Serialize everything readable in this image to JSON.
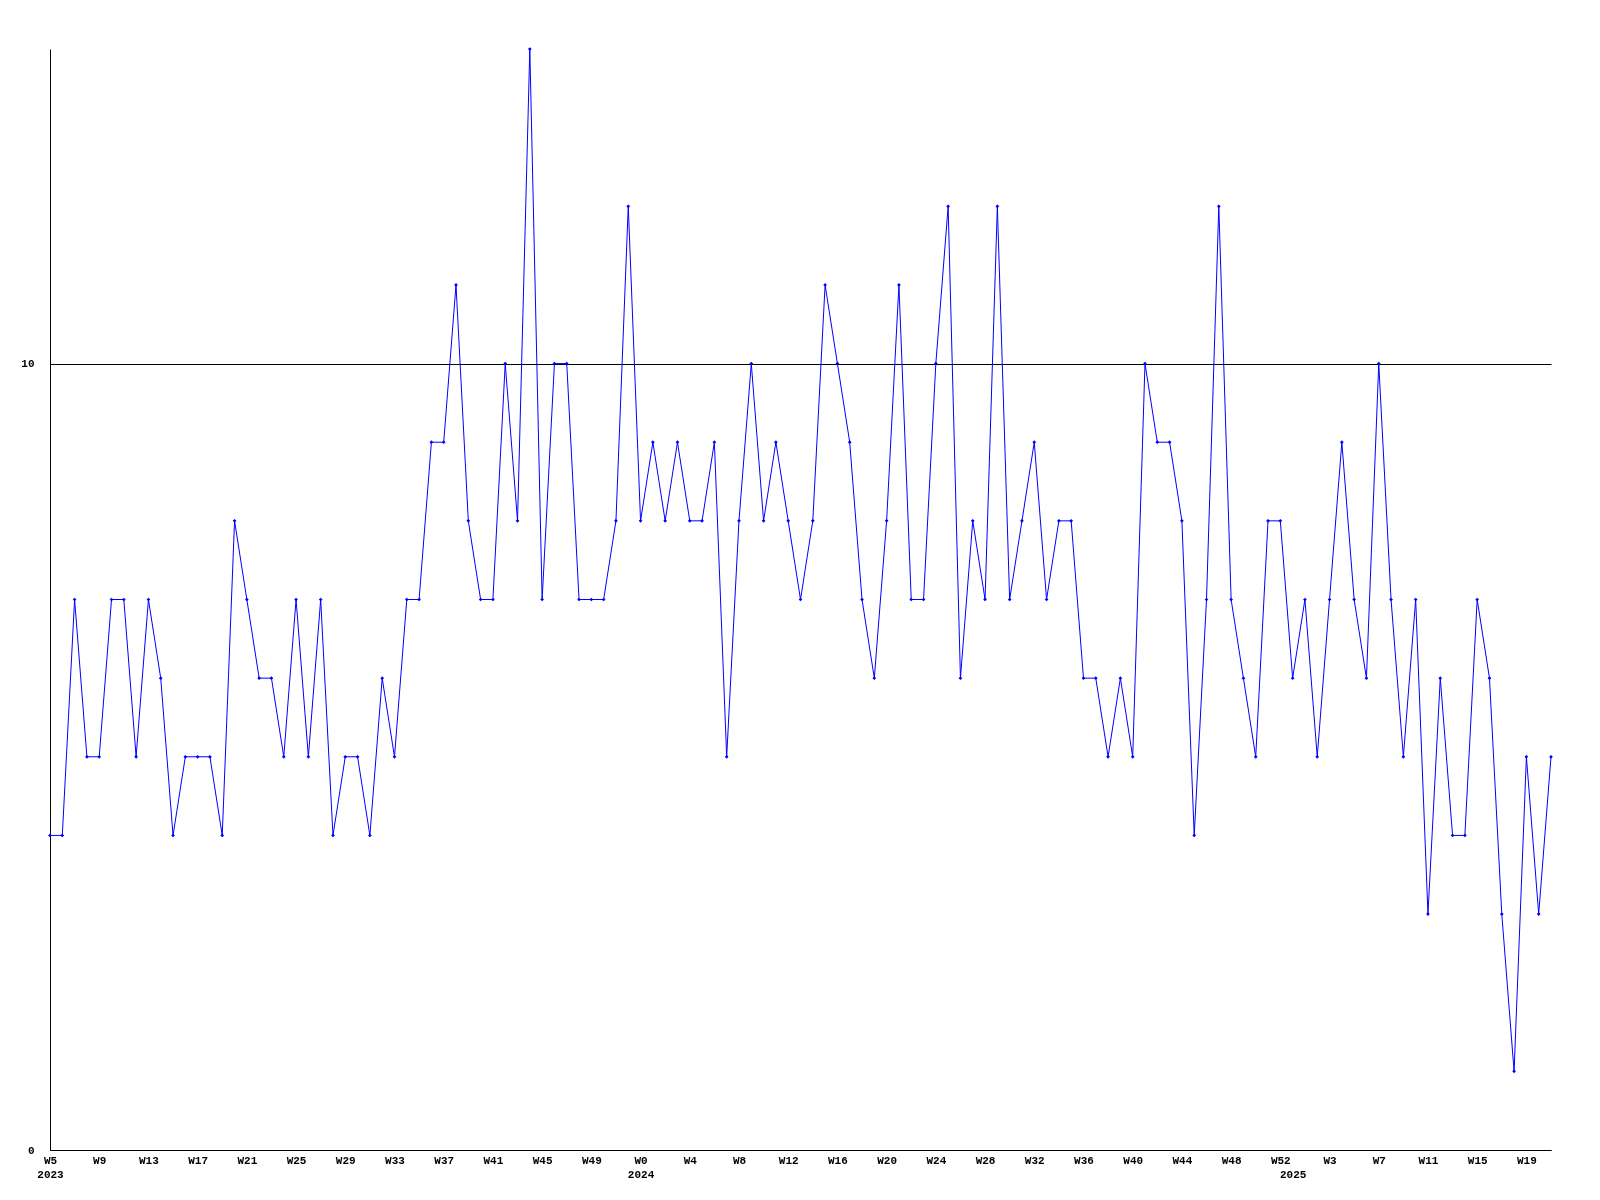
{
  "chart_data": {
    "type": "line",
    "categories": [
      "W5\n2023",
      null,
      null,
      null,
      "W9",
      null,
      null,
      null,
      "W13",
      null,
      null,
      null,
      "W17",
      null,
      null,
      null,
      "W21",
      null,
      null,
      null,
      "W25",
      null,
      null,
      null,
      "W29",
      null,
      null,
      null,
      "W33",
      null,
      null,
      null,
      "W37",
      null,
      null,
      null,
      "W41",
      null,
      null,
      null,
      "W45",
      null,
      null,
      null,
      "W49",
      null,
      null,
      null,
      "W0\n2024",
      null,
      null,
      null,
      "W4",
      null,
      null,
      null,
      "W8",
      null,
      null,
      null,
      "W12",
      null,
      null,
      null,
      "W16",
      null,
      null,
      null,
      "W20",
      null,
      null,
      null,
      "W24",
      null,
      null,
      null,
      "W28",
      null,
      null,
      null,
      "W32",
      null,
      null,
      null,
      "W36",
      null,
      null,
      null,
      "W40",
      null,
      null,
      null,
      "W44",
      null,
      null,
      null,
      "W48",
      null,
      null,
      null,
      "W52",
      "\n2025",
      null,
      null,
      "W3",
      null,
      null,
      null,
      "W7",
      null,
      null,
      null,
      "W11",
      null,
      null,
      null,
      "W15",
      null,
      null,
      null,
      "W19",
      null,
      null
    ],
    "series": [
      {
        "color": "#0000ff",
        "values": [
          4,
          4,
          7,
          5,
          5,
          7,
          7,
          5,
          7,
          6,
          4,
          5,
          5,
          5,
          4,
          8,
          7,
          6,
          6,
          5,
          7,
          5,
          7,
          4,
          5,
          5,
          4,
          6,
          5,
          7,
          7,
          9,
          9,
          11,
          8,
          7,
          7,
          10,
          8,
          14,
          7,
          10,
          10,
          7,
          7,
          7,
          8,
          12,
          8,
          9,
          8,
          9,
          8,
          8,
          9,
          5,
          8,
          10,
          8,
          9,
          8,
          7,
          8,
          11,
          10,
          9,
          7,
          6,
          8,
          11,
          7,
          7,
          10,
          12,
          6,
          8,
          7,
          12,
          7,
          8,
          9,
          7,
          8,
          8,
          6,
          6,
          5,
          6,
          5,
          10,
          9,
          9,
          8,
          4,
          7,
          12,
          7,
          6,
          5,
          8,
          8,
          6,
          7,
          5,
          7,
          9,
          7,
          6,
          10,
          7,
          5,
          7,
          3,
          6,
          4,
          4,
          7,
          6,
          3,
          1,
          5,
          3,
          5
        ]
      }
    ],
    "ylim": [
      0,
      14
    ],
    "yticks": [
      0,
      10
    ],
    "grid": "y",
    "marker": "diamond",
    "line_style": "solid"
  }
}
